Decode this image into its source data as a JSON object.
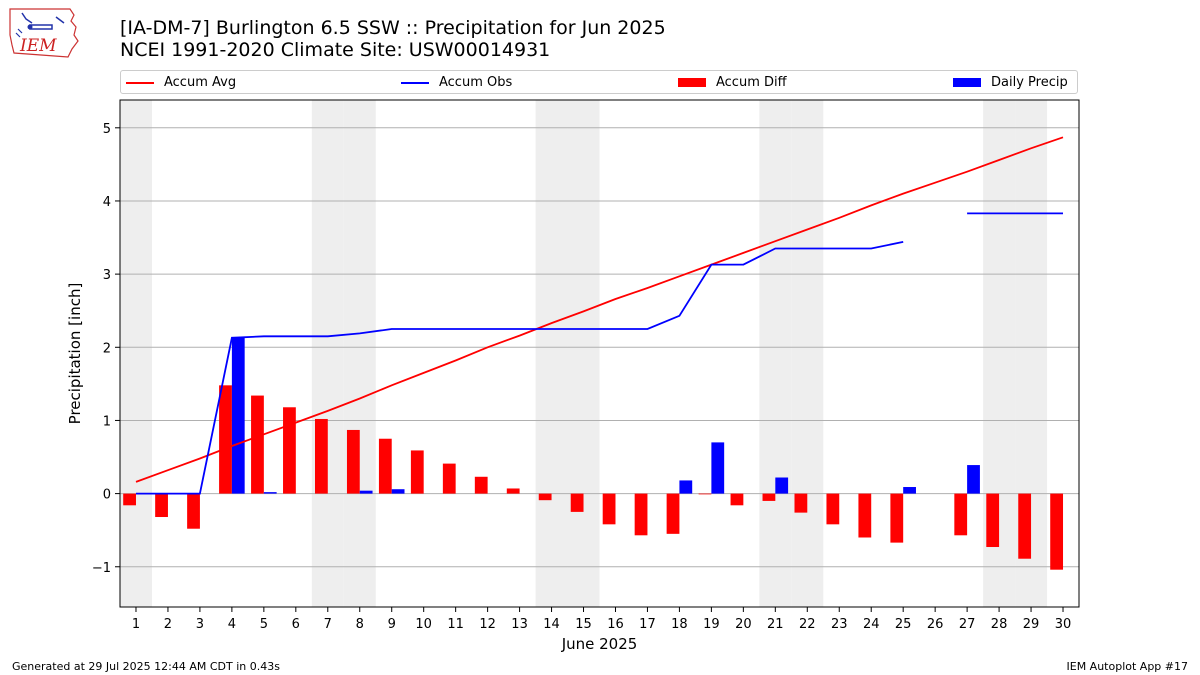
{
  "header": {
    "title_line1": "[IA-DM-7] Burlington 6.5 SSW :: Precipitation for Jun 2025",
    "title_line2": "NCEI 1991-2020 Climate Site: USW00014931",
    "logo_text": "IEM"
  },
  "footer": {
    "left": "Generated at 29 Jul 2025 12:44 AM CDT in 0.43s",
    "right": "IEM Autoplot App #17"
  },
  "colors": {
    "accum_avg": "#ff0000",
    "accum_obs": "#0000ff",
    "accum_diff": "#ff0000",
    "daily_precip": "#0000ff",
    "weekend_shade": "#eeeeee",
    "grid": "#b0b0b0"
  },
  "chart_data": {
    "type": "bar",
    "xlabel": "June 2025",
    "ylabel": "Precipitation [inch]",
    "xlim": [
      0.5,
      30.5
    ],
    "ylim": [
      -1.55,
      5.38
    ],
    "yticks": [
      -1,
      0,
      1,
      2,
      3,
      4,
      5
    ],
    "ytick_labels": [
      "−1",
      "0",
      "1",
      "2",
      "3",
      "4",
      "5"
    ],
    "grid": "horizontal",
    "legend_position": "top",
    "days": [
      1,
      2,
      3,
      4,
      5,
      6,
      7,
      8,
      9,
      10,
      11,
      12,
      13,
      14,
      15,
      16,
      17,
      18,
      19,
      20,
      21,
      22,
      23,
      24,
      25,
      26,
      27,
      28,
      29,
      30
    ],
    "weekend_shaded_days": [
      1,
      7,
      8,
      14,
      15,
      21,
      22,
      28,
      29
    ],
    "series": [
      {
        "name": "Accum Avg",
        "kind": "line",
        "values": [
          0.16,
          0.32,
          0.48,
          0.65,
          0.81,
          0.97,
          1.13,
          1.3,
          1.48,
          1.65,
          1.82,
          2.0,
          2.16,
          2.33,
          2.49,
          2.66,
          2.81,
          2.97,
          3.13,
          3.29,
          3.45,
          3.61,
          3.77,
          3.94,
          4.1,
          4.25,
          4.4,
          4.56,
          4.72,
          4.87
        ]
      },
      {
        "name": "Accum Obs",
        "kind": "line",
        "values": [
          0.0,
          0.0,
          0.0,
          2.13,
          2.15,
          2.15,
          2.15,
          2.19,
          2.25,
          2.25,
          2.25,
          2.25,
          2.25,
          2.25,
          2.25,
          2.25,
          2.25,
          2.43,
          3.13,
          3.13,
          3.35,
          3.35,
          3.35,
          3.35,
          3.44,
          null,
          3.83,
          3.83,
          3.83,
          3.83
        ]
      },
      {
        "name": "Accum Diff",
        "kind": "bar",
        "values": [
          -0.16,
          -0.32,
          -0.48,
          1.48,
          1.34,
          1.18,
          1.02,
          0.87,
          0.75,
          0.59,
          0.41,
          0.23,
          0.07,
          -0.09,
          -0.25,
          -0.42,
          -0.57,
          -0.55,
          -0.01,
          -0.16,
          -0.1,
          -0.26,
          -0.42,
          -0.6,
          -0.67,
          null,
          -0.57,
          -0.73,
          -0.89,
          -1.04
        ]
      },
      {
        "name": "Daily Precip",
        "kind": "bar",
        "values": [
          0.0,
          0.0,
          0.0,
          2.13,
          0.02,
          0.0,
          0.0,
          0.04,
          0.06,
          0.0,
          0.0,
          0.0,
          0.0,
          0.0,
          0.0,
          0.0,
          0.0,
          0.18,
          0.7,
          0.0,
          0.22,
          0.0,
          0.0,
          0.0,
          0.09,
          null,
          0.39,
          0.0,
          0.0,
          0.0
        ]
      }
    ]
  }
}
